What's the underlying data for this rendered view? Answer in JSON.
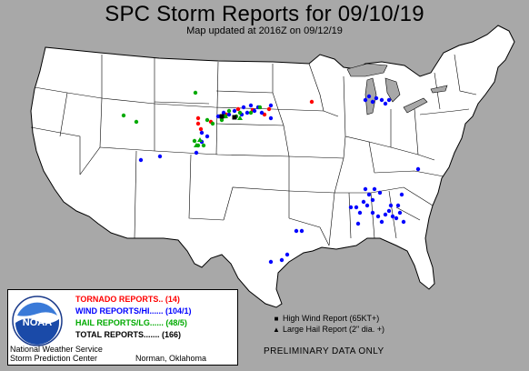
{
  "header": {
    "title": "SPC Storm Reports for 09/10/19",
    "updated": "Map updated at 2016Z on 09/12/19"
  },
  "legend": {
    "tornado": "TORNADO REPORTS.. (14)",
    "wind": "WIND REPORTS/HI...... (104/1)",
    "hail": "HAIL REPORTS/LG...... (48/5)",
    "total": "TOTAL REPORTS....... (166)",
    "logo_text": "NOAA"
  },
  "credits": {
    "nws": "National Weather Service",
    "spc": "Storm Prediction Center",
    "location": "Norman, Oklahoma"
  },
  "symbol_key": {
    "high_wind": "High Wind Report (65KT+)",
    "large_hail": "Large Hail Report (2\" dia. +)"
  },
  "footer": {
    "preliminary": "PRELIMINARY DATA ONLY"
  },
  "colors": {
    "background": "#a8a8a8",
    "land": "#ffffff",
    "water": "#a8a8a8",
    "tornado": "#ff0000",
    "wind": "#0000ff",
    "hail": "#00aa00",
    "high_wind": "#000000"
  }
}
